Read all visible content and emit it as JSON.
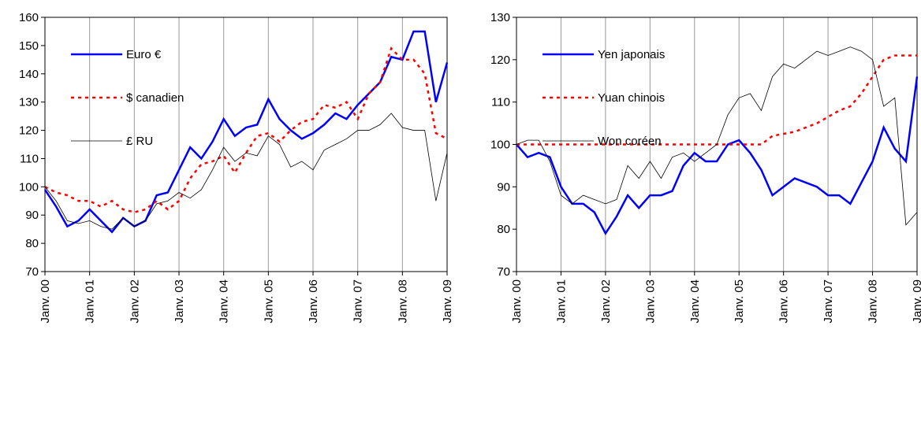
{
  "chart_data": [
    {
      "type": "line",
      "legend": "upper left",
      "grid": true,
      "x": [
        2000,
        2000.25,
        2000.5,
        2000.75,
        2001,
        2001.25,
        2001.5,
        2001.75,
        2002,
        2002.25,
        2002.5,
        2002.75,
        2003,
        2003.25,
        2003.5,
        2003.75,
        2004,
        2004.25,
        2004.5,
        2004.75,
        2005,
        2005.25,
        2005.5,
        2005.75,
        2006,
        2006.25,
        2006.5,
        2006.75,
        2007,
        2007.25,
        2007.5,
        2007.75,
        2008,
        2008.25,
        2008.5,
        2008.75,
        2009
      ],
      "xlim": [
        2000,
        2009
      ],
      "xticks": [
        {
          "value": 2000,
          "label": "Janv. 00"
        },
        {
          "value": 2001,
          "label": "Janv. 01"
        },
        {
          "value": 2002,
          "label": "Janv. 02"
        },
        {
          "value": 2003,
          "label": "Janv. 03"
        },
        {
          "value": 2004,
          "label": "Janv. 04"
        },
        {
          "value": 2005,
          "label": "Janv. 05"
        },
        {
          "value": 2006,
          "label": "Janv. 06"
        },
        {
          "value": 2007,
          "label": "Janv. 07"
        },
        {
          "value": 2008,
          "label": "Janv. 08"
        },
        {
          "value": 2009,
          "label": "Janv. 09"
        }
      ],
      "ylim": [
        70,
        160
      ],
      "yticks": [
        70,
        80,
        90,
        100,
        110,
        120,
        130,
        140,
        150,
        160
      ],
      "series": [
        {
          "name": "Euro €",
          "color": "#0000ff",
          "linewidth": 2.5,
          "linestyle": "solid",
          "values": [
            99,
            93,
            86,
            88,
            92,
            88,
            84,
            89,
            86,
            88,
            97,
            98,
            106,
            114,
            110,
            116,
            124,
            118,
            121,
            122,
            131,
            124,
            120,
            117,
            119,
            122,
            126,
            124,
            129,
            133,
            137,
            146,
            145,
            155,
            155,
            130,
            144
          ]
        },
        {
          "name": "$ canadien",
          "color": "#ff0000",
          "linewidth": 2.5,
          "linestyle": "dotted",
          "values": [
            100,
            98,
            97,
            95,
            95,
            93,
            95,
            92,
            91,
            92,
            95,
            92,
            95,
            103,
            108,
            109,
            111,
            105,
            112,
            118,
            119,
            116,
            120,
            123,
            124,
            129,
            128,
            130,
            124,
            133,
            137,
            149,
            145,
            145,
            140,
            119,
            117
          ]
        },
        {
          "name": "£ RU",
          "color": "#000000",
          "linewidth": 0.8,
          "linestyle": "solid",
          "values": [
            100,
            95,
            88,
            87,
            88,
            86,
            85,
            89,
            86,
            88,
            94,
            95,
            98,
            96,
            99,
            106,
            114,
            109,
            112,
            111,
            118,
            115,
            107,
            109,
            106,
            113,
            115,
            117,
            120,
            120,
            122,
            126,
            121,
            120,
            120,
            95,
            112
          ]
        }
      ]
    },
    {
      "type": "line",
      "legend": "upper left",
      "grid": true,
      "x": [
        2000,
        2000.25,
        2000.5,
        2000.75,
        2001,
        2001.25,
        2001.5,
        2001.75,
        2002,
        2002.25,
        2002.5,
        2002.75,
        2003,
        2003.25,
        2003.5,
        2003.75,
        2004,
        2004.25,
        2004.5,
        2004.75,
        2005,
        2005.25,
        2005.5,
        2005.75,
        2006,
        2006.25,
        2006.5,
        2006.75,
        2007,
        2007.25,
        2007.5,
        2007.75,
        2008,
        2008.25,
        2008.5,
        2008.75,
        2009
      ],
      "xlim": [
        2000,
        2009
      ],
      "xticks": [
        {
          "value": 2000,
          "label": "Janv. 00"
        },
        {
          "value": 2001,
          "label": "Janv. 01"
        },
        {
          "value": 2002,
          "label": "Janv. 02"
        },
        {
          "value": 2003,
          "label": "Janv. 03"
        },
        {
          "value": 2004,
          "label": "Janv. 04"
        },
        {
          "value": 2005,
          "label": "Janv. 05"
        },
        {
          "value": 2006,
          "label": "Janv. 06"
        },
        {
          "value": 2007,
          "label": "Janv. 07"
        },
        {
          "value": 2008,
          "label": "Janv. 08"
        },
        {
          "value": 2009,
          "label": "Janv. 09"
        }
      ],
      "ylim": [
        70,
        130
      ],
      "yticks": [
        70,
        80,
        90,
        100,
        110,
        120,
        130
      ],
      "series": [
        {
          "name": "Yen japonais",
          "color": "#0000ff",
          "linewidth": 2.5,
          "linestyle": "solid",
          "values": [
            100,
            97,
            98,
            97,
            90,
            86,
            86,
            84,
            79,
            83,
            88,
            85,
            88,
            88,
            89,
            95,
            98,
            96,
            96,
            100,
            101,
            98,
            94,
            88,
            90,
            92,
            91,
            90,
            88,
            88,
            86,
            91,
            96,
            104,
            99,
            96,
            116
          ]
        },
        {
          "name": "Yuan chinois",
          "color": "#ff0000",
          "linewidth": 2.5,
          "linestyle": "dotted",
          "values": [
            100,
            100,
            100,
            100,
            100,
            100,
            100,
            100,
            100,
            100,
            100,
            100,
            100,
            100,
            100,
            100,
            100,
            100,
            100,
            100,
            100,
            100,
            100,
            102,
            102.5,
            103,
            104,
            105,
            106.5,
            108,
            109,
            112,
            116,
            120,
            121,
            121,
            121
          ]
        },
        {
          "name": "Won coréen",
          "color": "#000000",
          "linewidth": 0.8,
          "linestyle": "solid",
          "values": [
            100,
            101,
            101,
            96,
            88,
            86,
            88,
            87,
            86,
            87,
            95,
            92,
            96,
            92,
            97,
            98,
            96,
            98,
            100,
            107,
            111,
            112,
            108,
            116,
            119,
            118,
            120,
            122,
            121,
            122,
            123,
            122,
            120,
            109,
            111,
            81,
            84
          ]
        }
      ]
    }
  ]
}
